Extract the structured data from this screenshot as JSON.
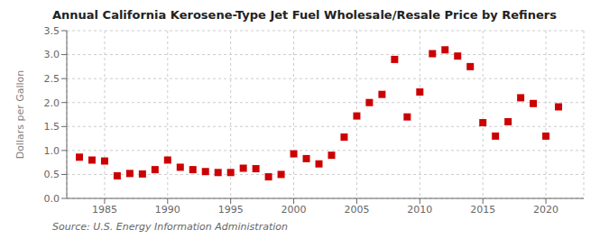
{
  "chart_data": {
    "type": "scatter",
    "title": "Annual California Kerosene-Type Jet Fuel Wholesale/Resale Price by Refiners",
    "y_label": "Dollars per Gallon",
    "source": "Source: U.S. Energy Information Administration",
    "x": [
      1983,
      1984,
      1985,
      1986,
      1987,
      1988,
      1989,
      1990,
      1991,
      1992,
      1993,
      1994,
      1995,
      1996,
      1997,
      1998,
      1999,
      2000,
      2001,
      2002,
      2003,
      2004,
      2005,
      2006,
      2007,
      2008,
      2009,
      2010,
      2011,
      2012,
      2013,
      2014,
      2015,
      2016,
      2017,
      2018,
      2019,
      2020,
      2021
    ],
    "values": [
      0.86,
      0.8,
      0.78,
      0.47,
      0.52,
      0.51,
      0.6,
      0.8,
      0.65,
      0.6,
      0.56,
      0.54,
      0.54,
      0.63,
      0.62,
      0.45,
      0.5,
      0.93,
      0.83,
      0.72,
      0.9,
      1.28,
      1.72,
      2.0,
      2.17,
      2.9,
      1.7,
      2.22,
      3.02,
      3.1,
      2.97,
      2.75,
      1.58,
      1.3,
      1.6,
      2.1,
      1.98,
      1.3,
      1.91
    ],
    "color": "#cc0000",
    "marker": "square",
    "xlim": [
      1982,
      2023
    ],
    "ylim": [
      0.0,
      3.5
    ],
    "xticks": [
      1985,
      1990,
      1995,
      2000,
      2005,
      2010,
      2015,
      2020
    ],
    "yticks": [
      {
        "value": 0.0,
        "label": "0.0"
      },
      0.5,
      {
        "value": 1.0,
        "label": "1.0"
      },
      1.5,
      {
        "value": 2.0,
        "label": "2.0"
      },
      2.5,
      {
        "value": 3.0,
        "label": "3.0"
      },
      3.5
    ],
    "grid": true
  }
}
